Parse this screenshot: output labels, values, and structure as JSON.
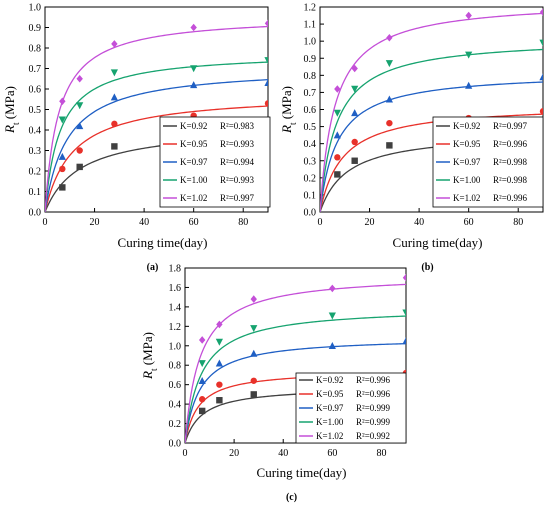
{
  "chart_data": [
    {
      "type": "line",
      "panel_label": "(a)",
      "xlabel": "Curing time(day)",
      "ylabel_main": "R",
      "ylabel_sub": "t",
      "ylabel_unit": " (MPa)",
      "xlim": [
        0,
        90
      ],
      "ylim": [
        0,
        1.0
      ],
      "xticks": [
        "0",
        "20",
        "40",
        "60",
        "80"
      ],
      "yticks": [
        "0.0",
        "0.1",
        "0.2",
        "0.3",
        "0.4",
        "0.5",
        "0.6",
        "0.7",
        "0.8",
        "0.9",
        "1.0"
      ],
      "legend_position": "lower-right",
      "series": [
        {
          "name": "K=0.92",
          "r2_text": "R²=0.983",
          "color": "#404040",
          "marker": "square",
          "points": [
            [
              7,
              0.12
            ],
            [
              14,
              0.22
            ],
            [
              28,
              0.32
            ],
            [
              60,
              0.38
            ],
            [
              90,
              0.4
            ]
          ],
          "fit_a": 0.42,
          "fit_b": 14
        },
        {
          "name": "K=0.95",
          "r2_text": "R²=0.993",
          "color": "#e8312a",
          "marker": "circle",
          "points": [
            [
              7,
              0.21
            ],
            [
              14,
              0.3
            ],
            [
              28,
              0.43
            ],
            [
              60,
              0.47
            ],
            [
              90,
              0.53
            ]
          ],
          "fit_a": 0.58,
          "fit_b": 11
        },
        {
          "name": "K=0.97",
          "r2_text": "R²=0.994",
          "color": "#1f5fc4",
          "marker": "triangle-up",
          "points": [
            [
              7,
              0.27
            ],
            [
              14,
              0.42
            ],
            [
              28,
              0.56
            ],
            [
              60,
              0.62
            ],
            [
              90,
              0.63
            ]
          ],
          "fit_a": 0.71,
          "fit_b": 9
        },
        {
          "name": "K=1.00",
          "r2_text": "R²=0.993",
          "color": "#16a36f",
          "marker": "triangle-down",
          "points": [
            [
              7,
              0.45
            ],
            [
              14,
              0.52
            ],
            [
              28,
              0.68
            ],
            [
              60,
              0.7
            ],
            [
              90,
              0.74
            ]
          ],
          "fit_a": 0.78,
          "fit_b": 6
        },
        {
          "name": "K=1.02",
          "r2_text": "R²=0.997",
          "color": "#c44fd8",
          "marker": "diamond",
          "points": [
            [
              7,
              0.54
            ],
            [
              14,
              0.65
            ],
            [
              28,
              0.82
            ],
            [
              60,
              0.9
            ],
            [
              90,
              0.92
            ]
          ],
          "fit_a": 0.96,
          "fit_b": 5.5
        }
      ]
    },
    {
      "type": "line",
      "panel_label": "(b)",
      "xlabel": "Curing time(day)",
      "ylabel_main": "R",
      "ylabel_sub": "t",
      "ylabel_unit": " (MPa)",
      "xlim": [
        0,
        90
      ],
      "ylim": [
        0,
        1.2
      ],
      "xticks": [
        "0",
        "20",
        "40",
        "60",
        "80"
      ],
      "yticks": [
        "0.0",
        "0.1",
        "0.2",
        "0.3",
        "0.4",
        "0.5",
        "0.6",
        "0.7",
        "0.8",
        "0.9",
        "1.0",
        "1.1",
        "1.2"
      ],
      "legend_position": "lower-right",
      "series": [
        {
          "name": "K=0.92",
          "r2_text": "R²=0.997",
          "color": "#404040",
          "marker": "square",
          "points": [
            [
              7,
              0.22
            ],
            [
              14,
              0.3
            ],
            [
              28,
              0.39
            ],
            [
              60,
              0.41
            ],
            [
              90,
              0.43
            ]
          ],
          "fit_a": 0.47,
          "fit_b": 11
        },
        {
          "name": "K=0.95",
          "r2_text": "R²=0.996",
          "color": "#e8312a",
          "marker": "circle",
          "points": [
            [
              7,
              0.32
            ],
            [
              14,
              0.41
            ],
            [
              28,
              0.52
            ],
            [
              60,
              0.55
            ],
            [
              90,
              0.59
            ]
          ],
          "fit_a": 0.63,
          "fit_b": 9
        },
        {
          "name": "K=0.97",
          "r2_text": "R²=0.998",
          "color": "#1f5fc4",
          "marker": "triangle-up",
          "points": [
            [
              7,
              0.45
            ],
            [
              14,
              0.58
            ],
            [
              28,
              0.66
            ],
            [
              60,
              0.74
            ],
            [
              90,
              0.79
            ]
          ],
          "fit_a": 0.82,
          "fit_b": 7
        },
        {
          "name": "K=1.00",
          "r2_text": "R²=0.998",
          "color": "#16a36f",
          "marker": "triangle-down",
          "points": [
            [
              7,
              0.58
            ],
            [
              14,
              0.72
            ],
            [
              28,
              0.87
            ],
            [
              60,
              0.92
            ],
            [
              90,
              0.99
            ]
          ],
          "fit_a": 1.02,
          "fit_b": 6.5
        },
        {
          "name": "K=1.02",
          "r2_text": "R²=0.996",
          "color": "#c44fd8",
          "marker": "diamond",
          "points": [
            [
              7,
              0.72
            ],
            [
              14,
              0.84
            ],
            [
              28,
              1.02
            ],
            [
              60,
              1.15
            ],
            [
              90,
              1.17
            ]
          ],
          "fit_a": 1.24,
          "fit_b": 6
        }
      ]
    },
    {
      "type": "line",
      "panel_label": "(c)",
      "xlabel": "Curing time(day)",
      "ylabel_main": "R",
      "ylabel_sub": "t",
      "ylabel_unit": " (MPa)",
      "xlim": [
        0,
        90
      ],
      "ylim": [
        0,
        1.8
      ],
      "xticks": [
        "0",
        "20",
        "40",
        "60",
        "80"
      ],
      "yticks": [
        "0.0",
        "0.2",
        "0.4",
        "0.6",
        "0.8",
        "1.0",
        "1.2",
        "1.4",
        "1.6",
        "1.8"
      ],
      "legend_position": "lower-right",
      "series": [
        {
          "name": "K=0.92",
          "r2_text": "R²=0.996",
          "color": "#404040",
          "marker": "square",
          "points": [
            [
              7,
              0.33
            ],
            [
              14,
              0.44
            ],
            [
              28,
              0.5
            ],
            [
              60,
              0.52
            ],
            [
              90,
              0.55
            ]
          ],
          "fit_a": 0.58,
          "fit_b": 7
        },
        {
          "name": "K=0.95",
          "r2_text": "R²=0.996",
          "color": "#e8312a",
          "marker": "circle",
          "points": [
            [
              7,
              0.45
            ],
            [
              14,
              0.6
            ],
            [
              28,
              0.64
            ],
            [
              60,
              0.68
            ],
            [
              90,
              0.72
            ]
          ],
          "fit_a": 0.75,
          "fit_b": 5.5
        },
        {
          "name": "K=0.97",
          "r2_text": "R²=0.999",
          "color": "#1f5fc4",
          "marker": "triangle-up",
          "points": [
            [
              7,
              0.64
            ],
            [
              14,
              0.82
            ],
            [
              28,
              0.92
            ],
            [
              60,
              1.0
            ],
            [
              90,
              1.05
            ]
          ],
          "fit_a": 1.09,
          "fit_b": 6
        },
        {
          "name": "K=1.00",
          "r2_text": "R²=0.999",
          "color": "#16a36f",
          "marker": "triangle-down",
          "points": [
            [
              7,
              0.82
            ],
            [
              14,
              1.04
            ],
            [
              28,
              1.18
            ],
            [
              60,
              1.31
            ],
            [
              90,
              1.34
            ]
          ],
          "fit_a": 1.4,
          "fit_b": 6.5
        },
        {
          "name": "K=1.02",
          "r2_text": "R²=0.992",
          "color": "#c44fd8",
          "marker": "diamond",
          "points": [
            [
              7,
              1.06
            ],
            [
              14,
              1.22
            ],
            [
              28,
              1.48
            ],
            [
              60,
              1.59
            ],
            [
              90,
              1.7
            ]
          ],
          "fit_a": 1.74,
          "fit_b": 6
        }
      ]
    }
  ]
}
